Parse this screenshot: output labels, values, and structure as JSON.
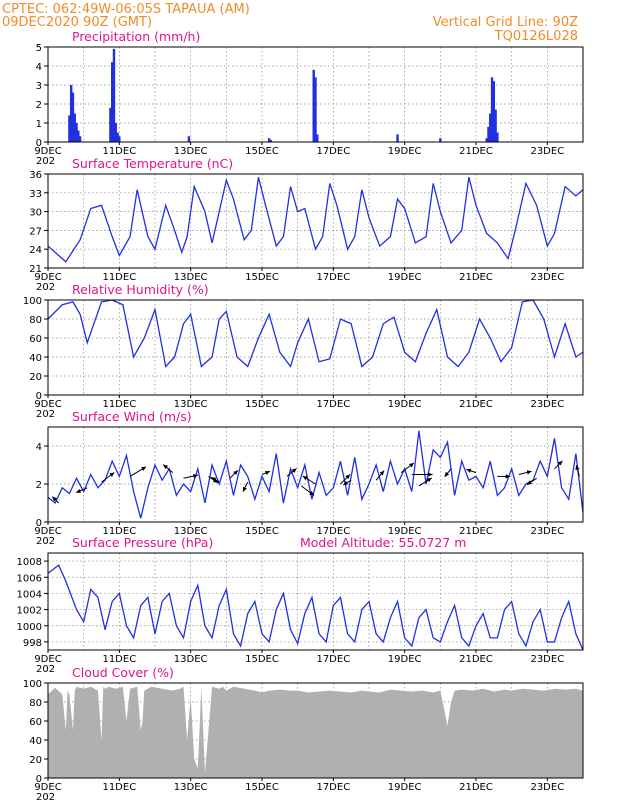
{
  "header": {
    "line1_left": "CPTEC:   062:49W-06:05S   TAPAUA (AM)",
    "line2_left": "09DEC2020 90Z (GMT)",
    "line1_right": "Vertical Grid Line: 90Z",
    "line2_right": "TQ0126L028"
  },
  "x_axis": {
    "labels": [
      "9DEC",
      "11DEC",
      "13DEC",
      "15DEC",
      "17DEC",
      "19DEC",
      "21DEC",
      "23DEC"
    ],
    "sublabel": "202"
  },
  "colors": {
    "header": "#f08c28",
    "title": "#e0148c",
    "series": "#2030e0",
    "cloud": "#b0b0b0"
  },
  "chart_data": [
    {
      "id": "precip",
      "type": "bar",
      "title": "Precipitation (mm/h)",
      "ylim": [
        0,
        5
      ],
      "yticks": [
        "0",
        "1",
        "2",
        "3",
        "4",
        "5"
      ],
      "x_unit": "days since 9DEC",
      "xlim": [
        0,
        15
      ],
      "bars": [
        [
          0.6,
          1.4
        ],
        [
          0.65,
          3.0
        ],
        [
          0.7,
          2.6
        ],
        [
          0.75,
          1.5
        ],
        [
          0.8,
          1.0
        ],
        [
          0.85,
          0.6
        ],
        [
          0.9,
          0.3
        ],
        [
          1.75,
          1.8
        ],
        [
          1.8,
          4.2
        ],
        [
          1.85,
          4.9
        ],
        [
          1.9,
          1.0
        ],
        [
          1.95,
          0.5
        ],
        [
          2.0,
          0.3
        ],
        [
          3.95,
          0.3
        ],
        [
          6.2,
          0.2
        ],
        [
          6.25,
          0.1
        ],
        [
          7.45,
          3.8
        ],
        [
          7.5,
          3.4
        ],
        [
          7.55,
          0.4
        ],
        [
          9.8,
          0.4
        ],
        [
          11.0,
          0.2
        ],
        [
          12.3,
          0.2
        ],
        [
          12.35,
          0.8
        ],
        [
          12.4,
          1.5
        ],
        [
          12.45,
          3.4
        ],
        [
          12.5,
          3.2
        ],
        [
          12.55,
          1.7
        ],
        [
          12.6,
          0.5
        ]
      ]
    },
    {
      "id": "temp",
      "type": "line",
      "title": "Surface Temperature (nC)",
      "ylim": [
        21,
        36
      ],
      "yticks": [
        "21",
        "24",
        "27",
        "30",
        "33",
        "36"
      ],
      "x_unit": "days since 9DEC",
      "xlim": [
        0,
        15
      ],
      "x": [
        0,
        0.5,
        0.9,
        1.2,
        1.5,
        1.8,
        2.0,
        2.3,
        2.5,
        2.8,
        3.0,
        3.3,
        3.55,
        3.75,
        3.9,
        4.1,
        4.4,
        4.6,
        4.8,
        5.0,
        5.2,
        5.5,
        5.7,
        5.9,
        6.1,
        6.4,
        6.6,
        6.8,
        7.0,
        7.2,
        7.5,
        7.7,
        7.9,
        8.1,
        8.4,
        8.6,
        8.8,
        9.0,
        9.3,
        9.6,
        9.8,
        10.0,
        10.3,
        10.6,
        10.8,
        11.0,
        11.3,
        11.6,
        11.8,
        12.0,
        12.3,
        12.6,
        12.9,
        13.1,
        13.4,
        13.7,
        14.0,
        14.2,
        14.5,
        14.8,
        15.0
      ],
      "y": [
        24.5,
        22.0,
        25.5,
        30.5,
        31.0,
        26.0,
        23.0,
        26.0,
        33.5,
        26.0,
        24.0,
        31.0,
        27.0,
        23.5,
        26.0,
        34.0,
        30.0,
        25.0,
        30.0,
        35.0,
        32.0,
        25.5,
        27.0,
        35.5,
        31.0,
        24.5,
        26.0,
        34.0,
        30.0,
        30.5,
        24.0,
        26.0,
        34.5,
        31.0,
        24.0,
        26.0,
        33.5,
        29.0,
        24.5,
        26.0,
        32.0,
        30.5,
        25.0,
        26.0,
        34.5,
        30.0,
        25.0,
        27.0,
        35.5,
        31.0,
        26.5,
        25.0,
        22.5,
        27.0,
        34.5,
        31.0,
        24.5,
        26.5,
        34.0,
        32.5,
        33.5
      ]
    },
    {
      "id": "rh",
      "type": "line",
      "title": "Relative Humidity (%)",
      "ylim": [
        0,
        100
      ],
      "yticks": [
        "0",
        "20",
        "40",
        "60",
        "80",
        "100"
      ],
      "x_unit": "days since 9DEC",
      "xlim": [
        0,
        15
      ],
      "x": [
        0,
        0.4,
        0.7,
        0.9,
        1.1,
        1.5,
        1.8,
        2.1,
        2.4,
        2.7,
        3.0,
        3.3,
        3.55,
        3.8,
        4.0,
        4.3,
        4.6,
        4.8,
        5.0,
        5.3,
        5.6,
        5.9,
        6.2,
        6.5,
        6.8,
        7.0,
        7.3,
        7.6,
        7.9,
        8.2,
        8.5,
        8.8,
        9.1,
        9.4,
        9.7,
        10.0,
        10.3,
        10.6,
        10.9,
        11.2,
        11.5,
        11.8,
        12.1,
        12.4,
        12.7,
        13.0,
        13.3,
        13.6,
        13.9,
        14.2,
        14.5,
        14.8,
        15.0
      ],
      "y": [
        80,
        95,
        98,
        85,
        55,
        98,
        100,
        95,
        40,
        60,
        90,
        30,
        40,
        75,
        85,
        30,
        40,
        80,
        88,
        40,
        30,
        60,
        85,
        45,
        30,
        55,
        80,
        35,
        38,
        80,
        75,
        30,
        40,
        75,
        82,
        45,
        35,
        65,
        90,
        40,
        30,
        45,
        80,
        60,
        35,
        50,
        98,
        100,
        80,
        40,
        75,
        40,
        45
      ]
    },
    {
      "id": "wind",
      "type": "line",
      "title": "Surface Wind (m/s)",
      "ylim": [
        0,
        5
      ],
      "yticks": [
        "0",
        "2",
        "4"
      ],
      "x_unit": "days since 9DEC",
      "xlim": [
        0,
        15
      ],
      "x": [
        0,
        0.2,
        0.4,
        0.6,
        0.8,
        1.0,
        1.2,
        1.4,
        1.6,
        1.8,
        2.0,
        2.2,
        2.4,
        2.6,
        2.8,
        3.0,
        3.2,
        3.4,
        3.6,
        3.8,
        4.0,
        4.2,
        4.4,
        4.6,
        4.8,
        5.0,
        5.2,
        5.4,
        5.6,
        5.8,
        6.0,
        6.2,
        6.4,
        6.6,
        6.8,
        7.0,
        7.2,
        7.4,
        7.6,
        7.8,
        8.0,
        8.2,
        8.4,
        8.6,
        8.8,
        9.0,
        9.2,
        9.4,
        9.6,
        9.8,
        10.0,
        10.2,
        10.4,
        10.6,
        10.8,
        11.0,
        11.2,
        11.4,
        11.6,
        11.8,
        12.0,
        12.2,
        12.4,
        12.6,
        12.8,
        13.0,
        13.2,
        13.4,
        13.6,
        13.8,
        14.0,
        14.2,
        14.4,
        14.6,
        14.8,
        15.0
      ],
      "y": [
        1.3,
        1.0,
        1.8,
        1.5,
        2.3,
        1.6,
        2.5,
        1.8,
        2.2,
        3.2,
        2.4,
        3.5,
        1.6,
        0.2,
        1.8,
        3.0,
        2.2,
        2.8,
        1.4,
        2.0,
        1.6,
        2.8,
        1.0,
        3.0,
        2.0,
        3.2,
        1.4,
        3.0,
        2.4,
        1.2,
        2.4,
        1.6,
        3.6,
        1.0,
        2.8,
        1.8,
        3.0,
        1.2,
        2.6,
        1.4,
        1.8,
        3.2,
        1.4,
        3.4,
        1.2,
        2.0,
        3.0,
        1.6,
        3.2,
        2.0,
        2.8,
        1.6,
        4.8,
        2.0,
        3.8,
        3.4,
        4.2,
        1.4,
        3.2,
        2.2,
        2.4,
        1.8,
        3.2,
        1.4,
        1.8,
        2.8,
        1.4,
        2.0,
        2.2,
        3.2,
        2.4,
        4.4,
        1.8,
        1.2,
        3.6,
        0.5
      ],
      "vectors": [
        [
          0.3,
          1.0,
          -0.4,
          0.4
        ],
        [
          1.1,
          1.8,
          -0.7,
          -0.3
        ],
        [
          1.5,
          2.1,
          0.8,
          0.6
        ],
        [
          2.3,
          2.4,
          1.0,
          0.6
        ],
        [
          3.5,
          2.6,
          -0.6,
          0.5
        ],
        [
          3.8,
          2.3,
          0.9,
          0.2
        ],
        [
          4.5,
          2.4,
          0.6,
          -0.4
        ],
        [
          4.8,
          2.1,
          -0.5,
          0.3
        ],
        [
          5.1,
          2.3,
          0.5,
          0.5
        ],
        [
          5.6,
          2.1,
          -0.3,
          -0.6
        ],
        [
          6.0,
          2.5,
          0.5,
          0.2
        ],
        [
          6.7,
          2.4,
          0.6,
          0.5
        ],
        [
          7.1,
          1.9,
          0.8,
          -0.6
        ],
        [
          7.5,
          2.0,
          -0.8,
          0.5
        ],
        [
          8.2,
          2.0,
          0.6,
          0.6
        ],
        [
          8.5,
          2.2,
          -0.5,
          -0.3
        ],
        [
          9.2,
          2.2,
          0.5,
          0.6
        ],
        [
          9.9,
          2.6,
          0.8,
          0.6
        ],
        [
          10.2,
          2.5,
          1.3,
          0.0
        ],
        [
          10.4,
          1.9,
          0.8,
          0.5
        ],
        [
          11.3,
          2.8,
          -0.4,
          -0.5
        ],
        [
          12.0,
          2.6,
          -0.6,
          0.2
        ],
        [
          12.6,
          2.4,
          0.8,
          0.0
        ],
        [
          13.2,
          2.5,
          0.8,
          0.2
        ],
        [
          13.7,
          2.3,
          -0.6,
          -0.4
        ],
        [
          14.2,
          2.8,
          0.5,
          0.5
        ],
        [
          14.9,
          2.4,
          -0.2,
          0.7
        ]
      ]
    },
    {
      "id": "pressure",
      "type": "line",
      "title": "Surface Pressure (hPa)",
      "extra_label": "Model Altitude: 55.0727 m",
      "ylim": [
        997,
        1009
      ],
      "yticks": [
        "998",
        "1000",
        "1002",
        "1004",
        "1006",
        "1008"
      ],
      "x_unit": "days since 9DEC",
      "xlim": [
        0,
        15
      ],
      "x": [
        0,
        0.3,
        0.5,
        0.8,
        1.0,
        1.2,
        1.4,
        1.6,
        1.8,
        2.0,
        2.2,
        2.4,
        2.6,
        2.8,
        3.0,
        3.2,
        3.4,
        3.6,
        3.8,
        4.0,
        4.2,
        4.4,
        4.6,
        4.8,
        5.0,
        5.2,
        5.4,
        5.6,
        5.8,
        6.0,
        6.2,
        6.4,
        6.6,
        6.8,
        7.0,
        7.2,
        7.4,
        7.6,
        7.8,
        8.0,
        8.2,
        8.4,
        8.6,
        8.8,
        9.0,
        9.2,
        9.4,
        9.6,
        9.8,
        10.0,
        10.2,
        10.4,
        10.6,
        10.8,
        11.0,
        11.2,
        11.4,
        11.6,
        11.8,
        12.0,
        12.2,
        12.4,
        12.6,
        12.8,
        13.0,
        13.2,
        13.4,
        13.6,
        13.8,
        14.0,
        14.2,
        14.4,
        14.6,
        14.8,
        15.0
      ],
      "y": [
        1006.5,
        1007.5,
        1005.5,
        1002.0,
        1000.5,
        1004.5,
        1003.5,
        999.5,
        1003.0,
        1004.0,
        1000.0,
        998.5,
        1002.5,
        1003.5,
        999.0,
        1003.0,
        1004.0,
        1000.0,
        998.5,
        1003.0,
        1005.0,
        1000.0,
        998.5,
        1002.5,
        1004.5,
        999.0,
        997.5,
        1001.5,
        1003.0,
        999.0,
        998.0,
        1002.0,
        1004.0,
        999.5,
        997.8,
        1001.5,
        1003.5,
        999.0,
        998.0,
        1002.5,
        1003.5,
        999.0,
        998.0,
        1002.0,
        1003.0,
        999.0,
        998.0,
        1001.0,
        1003.0,
        998.5,
        997.5,
        1001.0,
        1002.0,
        998.5,
        998.0,
        1000.5,
        1002.5,
        998.5,
        997.5,
        1000.0,
        1001.5,
        998.5,
        998.5,
        1002.0,
        1003.0,
        999.0,
        997.5,
        1000.5,
        1002.0,
        998.0,
        998.0,
        1001.0,
        1003.0,
        999.0,
        997.0
      ]
    },
    {
      "id": "cloud",
      "type": "area",
      "title": "Cloud Cover (%)",
      "ylim": [
        0,
        100
      ],
      "yticks": [
        "0",
        "20",
        "40",
        "60",
        "80",
        "100"
      ],
      "x_unit": "days since 9DEC",
      "xlim": [
        0,
        15
      ],
      "x": [
        0,
        0.2,
        0.4,
        0.5,
        0.55,
        0.6,
        0.7,
        0.75,
        0.8,
        1.0,
        1.2,
        1.4,
        1.5,
        1.55,
        1.6,
        1.7,
        1.9,
        2.1,
        2.2,
        2.3,
        2.5,
        2.6,
        2.65,
        2.7,
        2.9,
        3.2,
        3.5,
        3.7,
        3.8,
        3.9,
        4.0,
        4.1,
        4.2,
        4.3,
        4.4,
        4.6,
        4.8,
        4.9,
        5.0,
        5.2,
        5.5,
        5.8,
        6.0,
        6.2,
        6.5,
        6.8,
        7.0,
        7.3,
        7.6,
        7.9,
        8.2,
        8.5,
        8.8,
        9.0,
        9.3,
        9.6,
        9.9,
        10.2,
        10.5,
        10.8,
        11.0,
        11.2,
        11.3,
        11.4,
        11.6,
        11.9,
        12.2,
        12.5,
        12.8,
        13.0,
        13.3,
        13.6,
        13.9,
        14.2,
        14.5,
        14.8,
        15.0
      ],
      "y": [
        88,
        95,
        88,
        50,
        92,
        88,
        50,
        92,
        96,
        94,
        96,
        92,
        40,
        96,
        94,
        96,
        94,
        96,
        60,
        94,
        96,
        50,
        60,
        92,
        96,
        94,
        92,
        94,
        96,
        40,
        85,
        20,
        10,
        96,
        5,
        96,
        94,
        96,
        92,
        96,
        94,
        92,
        90,
        92,
        93,
        92,
        92,
        90,
        91,
        92,
        91,
        90,
        92,
        91,
        90,
        93,
        92,
        91,
        92,
        90,
        92,
        55,
        80,
        92,
        93,
        92,
        94,
        91,
        93,
        92,
        94,
        93,
        92,
        94,
        93,
        94,
        92
      ]
    }
  ]
}
